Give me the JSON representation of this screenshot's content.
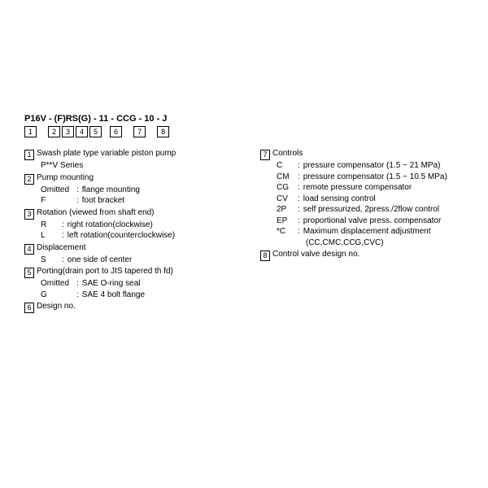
{
  "model_code": "P16V - (F)RS(G) - 11 - CCG - 10 - J",
  "header_boxes": [
    "1",
    "2",
    "3",
    "4",
    "5",
    "6",
    "7",
    "8"
  ],
  "sections_left": [
    {
      "num": "1",
      "title": "Swash plate type variable piston pump",
      "subs": [
        "P**V Series"
      ],
      "opts": []
    },
    {
      "num": "2",
      "title": "Pump mounting",
      "subs": [],
      "opts": [
        {
          "k": "Omitted",
          "v": "flange mounting"
        },
        {
          "k": "F",
          "v": "foot bracket"
        }
      ]
    },
    {
      "num": "3",
      "title": "Rotation (viewed from shaft end)",
      "subs": [],
      "opts": [
        {
          "k": "R",
          "v": "right rotation(clockwise)"
        },
        {
          "k": "L",
          "v": "left rotation(counterclockwise)"
        }
      ]
    },
    {
      "num": "4",
      "title": "Displacement",
      "subs": [],
      "opts": [
        {
          "k": "S",
          "v": "one side of center"
        }
      ]
    },
    {
      "num": "5",
      "title": "Porting(drain port to JIS tapered th  fd)",
      "subs": [],
      "opts": [
        {
          "k": "Omitted",
          "v": "SAE O-ring seal"
        },
        {
          "k": "G",
          "v": "SAE 4 bolt flange"
        }
      ]
    },
    {
      "num": "6",
      "title": "Design no.",
      "subs": [],
      "opts": []
    }
  ],
  "sections_right": [
    {
      "num": "7",
      "title": "Controls",
      "subs": [],
      "opts": [
        {
          "k": "C",
          "v": "pressure compensator (1.5 ~ 21 MPa)"
        },
        {
          "k": "CM",
          "v": "pressure compensator (1.5 ~ 10.5 MPa)"
        },
        {
          "k": "CG",
          "v": "remote pressure compensator"
        },
        {
          "k": "CV",
          "v": "load sensing control"
        },
        {
          "k": "2P",
          "v": "self pressurized, 2press./2flow control"
        },
        {
          "k": "EP",
          "v": "proportional valve press. compensator"
        },
        {
          "k": "*C",
          "v": "Maximum displacement adjustment"
        }
      ],
      "tail": "(CC,CMC,CCG,CVC)"
    },
    {
      "num": "8",
      "title": "Control valve design no.",
      "subs": [],
      "opts": []
    }
  ]
}
